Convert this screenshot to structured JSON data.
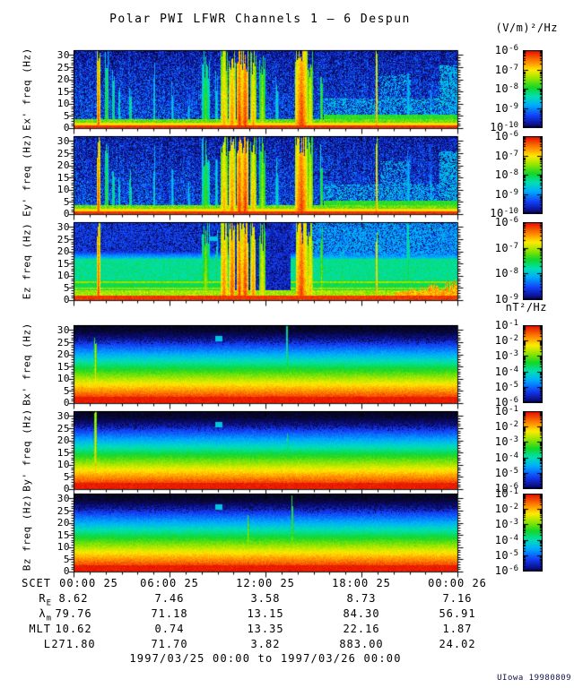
{
  "title": "Polar PWI LFWR Channels 1 — 6 Despun",
  "units": {
    "electric": "(V/m)²/Hz",
    "magnetic": "nT²/Hz"
  },
  "footer_range": "1997/03/25 00:00 to 1997/03/26 00:00",
  "credit": "UIowa 19980809",
  "colors": {
    "background": "#ffffff",
    "axis": "#000000",
    "colormap": [
      "#000019",
      "#0a0a78",
      "#143cf5",
      "#00aaff",
      "#00e1b4",
      "#14d728",
      "#96e600",
      "#ffeb00",
      "#ff8200",
      "#e60a00"
    ]
  },
  "chart_data": {
    "type": "heatmap",
    "description": "Six stacked 0-30 Hz frequency-time spectrogram panels over 24 hours, electric field channels Ex' Ey' Ez then magnetic channels Bx' By' Bz, each with its own log-scaled rainbow colorbar.",
    "xaxis": {
      "label": "SCET",
      "tick_labels": [
        "00:00 25",
        "06:00 25",
        "12:00 25",
        "18:00 25",
        "00:00 26"
      ],
      "hours_span": 24,
      "minor_tick_hours": 1,
      "major_tick_hours": 6
    },
    "yaxis": {
      "ticks": [
        0,
        5,
        10,
        15,
        20,
        25,
        30
      ],
      "range": [
        0,
        32
      ],
      "unit": "Hz"
    },
    "panels": [
      {
        "id": "ex",
        "ylabel": "Ex' freq (Hz)",
        "style": "e",
        "seed": 11,
        "colorbar_exponents": [
          -6,
          -7,
          -8,
          -9,
          -10
        ],
        "events": [
          {
            "x": 0.064,
            "w": 0.004,
            "f": 32,
            "v": 0.96
          },
          {
            "x": 0.085,
            "w": 0.005,
            "f": 27,
            "v": 0.62
          },
          {
            "x": 0.103,
            "w": 0.004,
            "f": 21,
            "v": 0.55
          },
          {
            "x": 0.118,
            "w": 0.003,
            "f": 14,
            "v": 0.5
          },
          {
            "x": 0.148,
            "w": 0.004,
            "f": 15,
            "v": 0.55
          },
          {
            "x": 0.21,
            "w": 0.003,
            "f": 24,
            "v": 0.5
          },
          {
            "x": 0.257,
            "w": 0.003,
            "f": 17,
            "v": 0.48
          },
          {
            "x": 0.3,
            "w": 0.003,
            "f": 12,
            "v": 0.45
          },
          {
            "x": 0.344,
            "w": 0.01,
            "f": 27,
            "v": 0.62
          },
          {
            "x": 0.372,
            "w": 0.004,
            "f": 20,
            "v": 0.5
          },
          {
            "x": 0.392,
            "w": 0.01,
            "f": 30,
            "v": 0.85
          },
          {
            "x": 0.413,
            "w": 0.009,
            "f": 31,
            "v": 0.9
          },
          {
            "x": 0.432,
            "w": 0.008,
            "f": 32,
            "v": 0.97
          },
          {
            "x": 0.447,
            "w": 0.009,
            "f": 32,
            "v": 0.97
          },
          {
            "x": 0.468,
            "w": 0.008,
            "f": 30,
            "v": 0.85
          },
          {
            "x": 0.492,
            "w": 0.008,
            "f": 28,
            "v": 0.72
          },
          {
            "x": 0.53,
            "w": 0.004,
            "f": 20,
            "v": 0.5
          },
          {
            "x": 0.594,
            "w": 0.016,
            "f": 32,
            "v": 0.96
          },
          {
            "x": 0.617,
            "w": 0.007,
            "f": 29,
            "v": 0.8
          },
          {
            "x": 0.647,
            "w": 0.004,
            "f": 24,
            "v": 0.65
          },
          {
            "x": 0.79,
            "w": 0.0025,
            "f": 32,
            "v": 0.9
          },
          {
            "x": 0.873,
            "w": 0.005,
            "f": 26,
            "v": 0.45
          },
          {
            "x": 0.932,
            "w": 0.003,
            "f": 18,
            "v": 0.4
          }
        ]
      },
      {
        "id": "ey",
        "ylabel": "Ey' freq (Hz)",
        "style": "e",
        "seed": 22,
        "colorbar_exponents": [
          -6,
          -7,
          -8,
          -9,
          -10
        ],
        "events": [
          {
            "x": 0.064,
            "w": 0.004,
            "f": 32,
            "v": 0.96
          },
          {
            "x": 0.085,
            "w": 0.005,
            "f": 27,
            "v": 0.62
          },
          {
            "x": 0.103,
            "w": 0.004,
            "f": 21,
            "v": 0.55
          },
          {
            "x": 0.118,
            "w": 0.003,
            "f": 14,
            "v": 0.5
          },
          {
            "x": 0.148,
            "w": 0.004,
            "f": 15,
            "v": 0.55
          },
          {
            "x": 0.21,
            "w": 0.003,
            "f": 24,
            "v": 0.5
          },
          {
            "x": 0.257,
            "w": 0.003,
            "f": 17,
            "v": 0.48
          },
          {
            "x": 0.3,
            "w": 0.003,
            "f": 12,
            "v": 0.45
          },
          {
            "x": 0.344,
            "w": 0.01,
            "f": 27,
            "v": 0.62
          },
          {
            "x": 0.372,
            "w": 0.004,
            "f": 20,
            "v": 0.5
          },
          {
            "x": 0.392,
            "w": 0.01,
            "f": 30,
            "v": 0.85
          },
          {
            "x": 0.413,
            "w": 0.009,
            "f": 31,
            "v": 0.9
          },
          {
            "x": 0.432,
            "w": 0.008,
            "f": 32,
            "v": 0.97
          },
          {
            "x": 0.447,
            "w": 0.009,
            "f": 32,
            "v": 0.97
          },
          {
            "x": 0.468,
            "w": 0.008,
            "f": 30,
            "v": 0.85
          },
          {
            "x": 0.492,
            "w": 0.008,
            "f": 28,
            "v": 0.72
          },
          {
            "x": 0.53,
            "w": 0.004,
            "f": 20,
            "v": 0.5
          },
          {
            "x": 0.594,
            "w": 0.016,
            "f": 32,
            "v": 0.96
          },
          {
            "x": 0.617,
            "w": 0.007,
            "f": 29,
            "v": 0.8
          },
          {
            "x": 0.647,
            "w": 0.004,
            "f": 24,
            "v": 0.65
          },
          {
            "x": 0.79,
            "w": 0.0025,
            "f": 32,
            "v": 0.9
          },
          {
            "x": 0.873,
            "w": 0.005,
            "f": 26,
            "v": 0.45
          },
          {
            "x": 0.932,
            "w": 0.003,
            "f": 18,
            "v": 0.4
          }
        ]
      },
      {
        "id": "ez",
        "ylabel": "Ez freq (Hz)",
        "style": "ez",
        "seed": 33,
        "colorbar_exponents": [
          -6,
          -7,
          -8,
          -9
        ],
        "marker": {
          "x": 0.352,
          "w": 0.024,
          "f1": 24.2,
          "f2": 26.4,
          "v": 0.38
        },
        "events": [
          {
            "x": 0.064,
            "w": 0.004,
            "f": 32,
            "v": 0.97
          },
          {
            "x": 0.344,
            "w": 0.01,
            "f": 30,
            "v": 0.7
          },
          {
            "x": 0.372,
            "w": 0.004,
            "f": 24,
            "v": 0.6
          },
          {
            "x": 0.392,
            "w": 0.01,
            "f": 32,
            "v": 0.9
          },
          {
            "x": 0.413,
            "w": 0.008,
            "f": 32,
            "v": 0.95
          },
          {
            "x": 0.432,
            "w": 0.007,
            "f": 32,
            "v": 0.97
          },
          {
            "x": 0.447,
            "w": 0.008,
            "f": 32,
            "v": 0.97
          },
          {
            "x": 0.468,
            "w": 0.007,
            "f": 31,
            "v": 0.9
          },
          {
            "x": 0.492,
            "w": 0.008,
            "f": 28,
            "v": 0.8
          },
          {
            "x": 0.594,
            "w": 0.015,
            "f": 32,
            "v": 0.96
          },
          {
            "x": 0.617,
            "w": 0.007,
            "f": 30,
            "v": 0.85
          },
          {
            "x": 0.647,
            "w": 0.004,
            "f": 26,
            "v": 0.7
          },
          {
            "x": 0.7,
            "w": 0.003,
            "f": 20,
            "v": 0.6
          },
          {
            "x": 0.79,
            "w": 0.0025,
            "f": 32,
            "v": 0.9
          },
          {
            "x": 0.873,
            "w": 0.005,
            "f": 28,
            "v": 0.6
          }
        ]
      },
      {
        "id": "bx",
        "ylabel": "Bx' freq (Hz)",
        "style": "b",
        "seed": 44,
        "colorbar_exponents": [
          -1,
          -2,
          -3,
          -4,
          -5,
          -6
        ],
        "marker": {
          "x": 0.368,
          "w": 0.02,
          "f1": 25.5,
          "f2": 27.6,
          "v": 0.38
        },
        "events": [
          {
            "x": 0.056,
            "w": 0.003,
            "f": 30,
            "v": 0.8
          },
          {
            "x": 0.557,
            "w": 0.0025,
            "f": 30,
            "v": 0.65
          }
        ]
      },
      {
        "id": "by",
        "ylabel": "By' freq (Hz)",
        "style": "b",
        "seed": 55,
        "colorbar_exponents": [
          -1,
          -2,
          -3,
          -4,
          -5,
          -6
        ],
        "marker": {
          "x": 0.368,
          "w": 0.02,
          "f1": 25.5,
          "f2": 27.6,
          "v": 0.38
        },
        "events": [
          {
            "x": 0.056,
            "w": 0.003,
            "f": 30,
            "v": 0.85
          },
          {
            "x": 0.557,
            "w": 0.0025,
            "f": 28,
            "v": 0.6
          }
        ]
      },
      {
        "id": "bz",
        "ylabel": "Bz freq (Hz)",
        "style": "b",
        "seed": 66,
        "colorbar_exponents": [
          -1,
          -2,
          -3,
          -4,
          -5,
          -6
        ],
        "marker": {
          "x": 0.368,
          "w": 0.02,
          "f1": 25.5,
          "f2": 27.6,
          "v": 0.38
        },
        "events": [
          {
            "x": 0.455,
            "w": 0.0025,
            "f": 26,
            "v": 0.75
          },
          {
            "x": 0.57,
            "w": 0.003,
            "f": 30,
            "v": 0.72
          }
        ]
      }
    ],
    "ephemeris": {
      "scet": {
        "label": "SCET",
        "values": [
          "00:00 25",
          "06:00 25",
          "12:00 25",
          "18:00 25",
          "00:00 26"
        ]
      },
      "rows": [
        {
          "label": "R",
          "sub": "E",
          "values": [
            "8.62",
            "7.46",
            "3.58",
            "8.73",
            "7.16"
          ]
        },
        {
          "label": "λ",
          "sub": "m",
          "values": [
            "79.76",
            "71.18",
            "13.15",
            "84.30",
            "56.91"
          ]
        },
        {
          "label": "MLT",
          "sub": "",
          "values": [
            "10.62",
            "0.74",
            "13.35",
            "22.16",
            "1.87"
          ]
        },
        {
          "label": "L",
          "sub": "",
          "values": [
            "271.80",
            "71.70",
            "3.82",
            "883.00",
            "24.02"
          ]
        }
      ]
    }
  }
}
